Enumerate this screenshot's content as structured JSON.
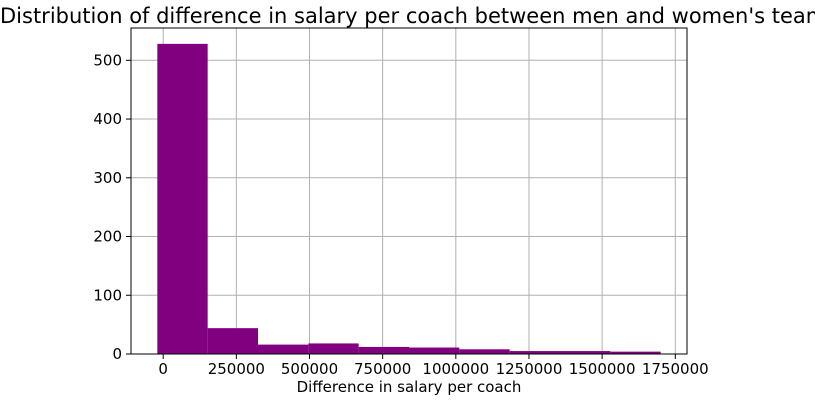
{
  "chart_data": {
    "type": "bar",
    "title": "Distribution of difference in salary per coach between men and women's teams",
    "xlabel": "Difference in salary per coach",
    "ylabel": "",
    "bin_edges": [
      -20000,
      152000,
      324000,
      496000,
      668000,
      840000,
      1012000,
      1184000,
      1356000,
      1528000,
      1700000
    ],
    "values": [
      528,
      44,
      16,
      18,
      12,
      11,
      8,
      5,
      5,
      4
    ],
    "xlim": [
      -110000,
      1790000
    ],
    "ylim": [
      0,
      555
    ],
    "xticks": [
      0,
      250000,
      500000,
      750000,
      1000000,
      1250000,
      1500000,
      1750000
    ],
    "yticks": [
      0,
      100,
      200,
      300,
      400,
      500
    ],
    "grid": true,
    "bar_color": "#800080",
    "grid_color": "#b0b0b0"
  }
}
